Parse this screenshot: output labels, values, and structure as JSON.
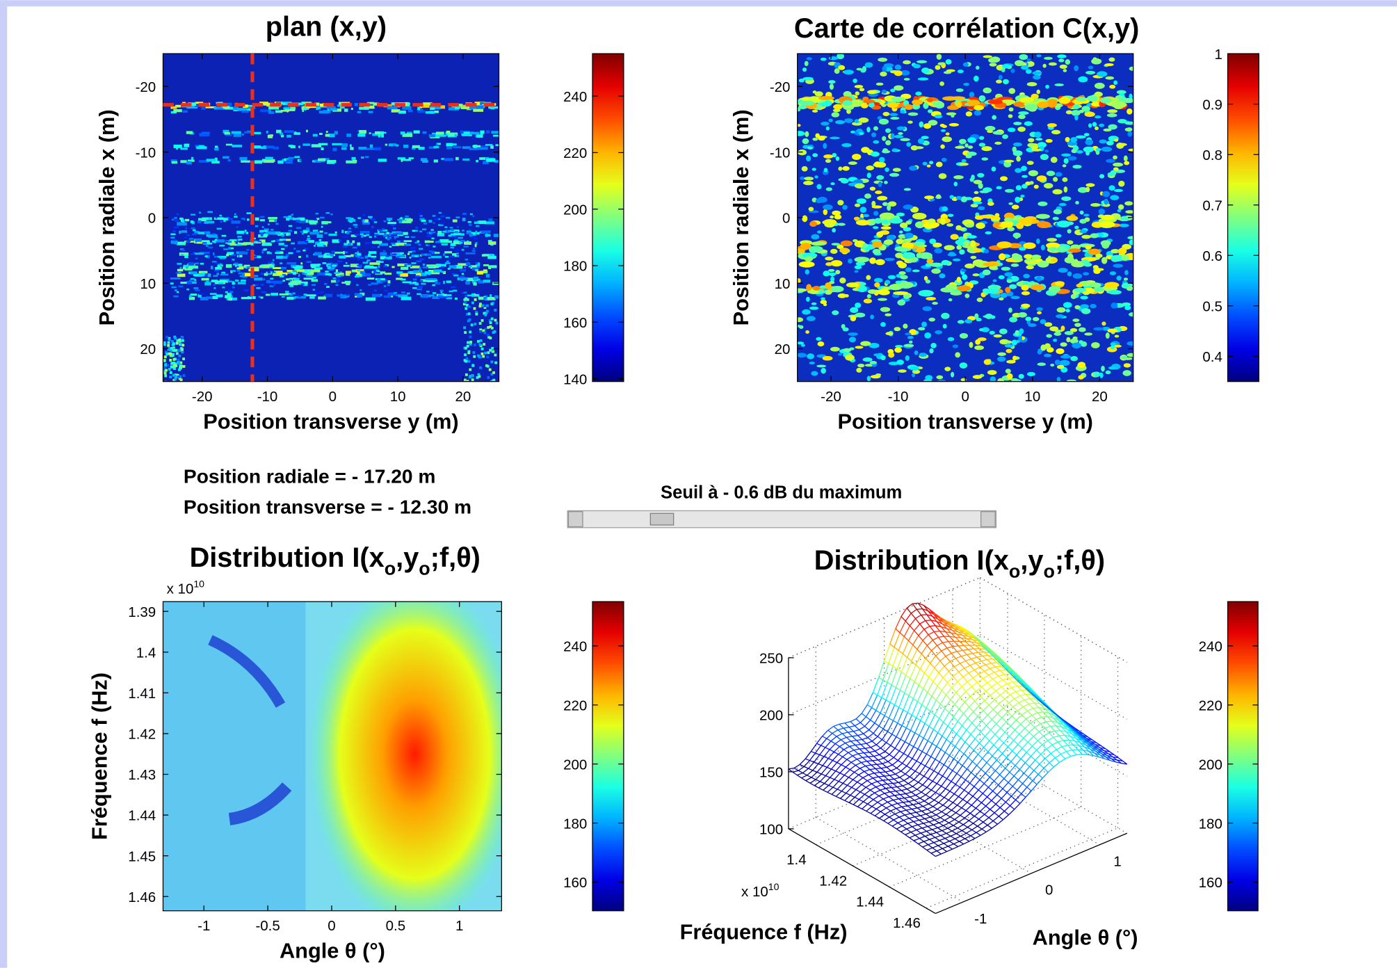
{
  "plots": [
    {
      "title": "plan (x,y)",
      "xlabel": "Position transverse  y (m)",
      "ylabel": "Position radiale  x (m)",
      "xlim": [
        -26,
        25.5
      ],
      "ylim": [
        -25,
        25
      ],
      "xticks": [
        -20,
        -10,
        0,
        10,
        20
      ],
      "yticks": [
        -20,
        -10,
        0,
        10,
        20
      ],
      "crosshair": {
        "x": -17.2,
        "y": -12.3
      },
      "colorbar": {
        "lim": [
          139,
          255
        ],
        "ticks": [
          140,
          160,
          180,
          200,
          220,
          240
        ]
      }
    },
    {
      "title": "Carte de corrélation C(x,y)",
      "xlabel": "Position transverse  y (m)",
      "ylabel": "Position radiale  x (m)",
      "xlim": [
        -25,
        25
      ],
      "ylim": [
        -25,
        25
      ],
      "xticks": [
        -20,
        -10,
        0,
        10,
        20
      ],
      "yticks": [
        -20,
        -10,
        0,
        10,
        20
      ],
      "colorbar": {
        "lim": [
          0.35,
          1
        ],
        "ticks": [
          0.4,
          0.5,
          0.6,
          0.7,
          0.8,
          0.9,
          1
        ]
      }
    },
    {
      "title": [
        "Distribution I(x",
        "o",
        ",y",
        "o",
        ";f,θ)"
      ],
      "xlabel": "Angle   θ (°)",
      "ylabel": "Fréquence  f (Hz)",
      "exponent": [
        "x 10",
        "10"
      ],
      "xlim": [
        -1.32,
        1.33
      ],
      "ylim": [
        1.3876,
        1.4635
      ],
      "xticks": [
        -1,
        -0.5,
        0,
        0.5,
        1
      ],
      "yticks": [
        1.39,
        1.4,
        1.41,
        1.42,
        1.43,
        1.44,
        1.45,
        1.46
      ],
      "colorbar": {
        "lim": [
          150.3,
          255
        ],
        "ticks": [
          160,
          180,
          200,
          220,
          240
        ]
      }
    },
    {
      "title": [
        "Distribution I(x",
        "o",
        ",y",
        "o",
        ";f,θ)"
      ],
      "freq_label": "Fréquence  f (Hz)",
      "angle_label": "Angle   θ (°)",
      "exponent": [
        "x 10",
        "10"
      ],
      "flim": [
        1.385,
        1.465
      ],
      "alim": [
        -1.4,
        1.4
      ],
      "zlim": [
        100,
        250
      ],
      "freq_ticks": [
        1.4,
        1.42,
        1.44,
        1.46
      ],
      "angle_ticks": [
        -1,
        0,
        1
      ],
      "zticks": [
        100,
        150,
        200,
        250
      ],
      "colorbar": {
        "lim": [
          150.3,
          255
        ],
        "ticks": [
          160,
          180,
          200,
          220,
          240
        ]
      }
    }
  ],
  "readout": [
    "Position radiale  = - 17.20 m",
    "Position transverse = - 12.30 m"
  ],
  "threshold": "Seuil à - 0.6 dB du maximum"
}
